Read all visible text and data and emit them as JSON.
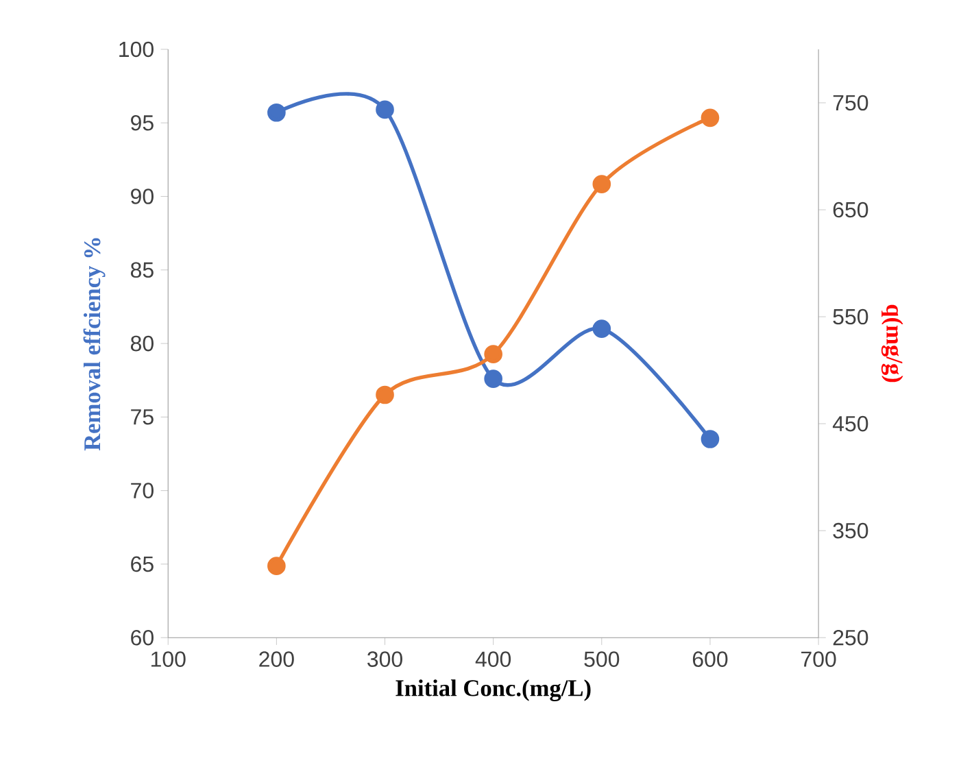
{
  "chart_data": {
    "type": "line",
    "xlabel": "Initial Conc.(mg/L)",
    "ylabel": "Removal effciency %",
    "y2label": "q(mg/g)",
    "x": [
      200,
      300,
      400,
      500,
      600
    ],
    "xlim": [
      100,
      700
    ],
    "xticks": [
      100,
      200,
      300,
      400,
      500,
      600,
      700
    ],
    "ylim": [
      60,
      100
    ],
    "yticks": [
      60,
      65,
      70,
      75,
      80,
      85,
      90,
      95,
      100
    ],
    "y2lim": [
      250,
      800
    ],
    "y2ticks": [
      250,
      350,
      450,
      550,
      650,
      750
    ],
    "marker": "circle",
    "line_style": "solid",
    "grid": false,
    "legend": false,
    "series": [
      {
        "color": "#4472c4",
        "values": [
          95.7,
          95.9,
          77.6,
          81.0,
          73.5
        ]
      },
      {
        "color": "#ed7d31",
        "values": [
          317,
          477,
          515,
          674,
          736
        ],
        "axis": "y2"
      }
    ]
  }
}
